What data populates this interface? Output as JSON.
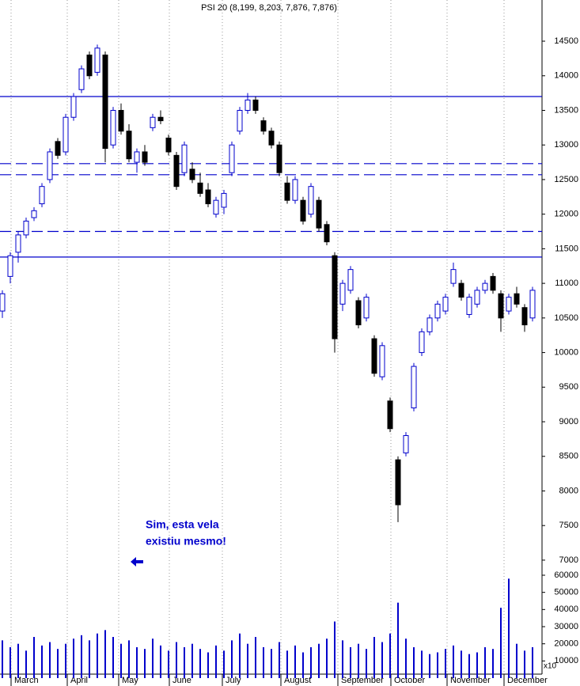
{
  "chart_data": {
    "type": "candlestick",
    "title": "PSI 20 (8,199, 8,203, 7,876, 7,876)",
    "annotation": [
      "Sim, esta vela",
      "existiu mesmo!"
    ],
    "volume_unit_label": "x10",
    "x": [
      0,
      1,
      2,
      3,
      4,
      5,
      6,
      7,
      8,
      9,
      10,
      11,
      12,
      13,
      14,
      15,
      16,
      17,
      18,
      19,
      20,
      21,
      22,
      23,
      24,
      25,
      26,
      27,
      28,
      29,
      30,
      31,
      32,
      33,
      34,
      35,
      36,
      37,
      38,
      39,
      40,
      41,
      42,
      43,
      44,
      45,
      46,
      47,
      48,
      49,
      50,
      51,
      52,
      53,
      54,
      55,
      56,
      57,
      58,
      59,
      60,
      61,
      62,
      63,
      64,
      65,
      66,
      67
    ],
    "open": [
      10600,
      11100,
      11450,
      11700,
      11950,
      12150,
      12500,
      13050,
      12900,
      13400,
      13800,
      14300,
      14050,
      14300,
      13000,
      13500,
      13200,
      12750,
      12900,
      13250,
      13400,
      13100,
      12850,
      12600,
      12650,
      12450,
      12350,
      12000,
      12100,
      12600,
      13200,
      13500,
      13650,
      13350,
      13200,
      13000,
      12450,
      12200,
      12200,
      12000,
      12200,
      11850,
      11400,
      10700,
      10900,
      10750,
      10500,
      10200,
      9650,
      9300,
      8450,
      8550,
      9200,
      10000,
      10300,
      10500,
      10600,
      11000,
      11000,
      10550,
      10700,
      10900,
      11100,
      10850,
      10600,
      10850,
      10650,
      10500
    ],
    "high": [
      10900,
      11450,
      11750,
      11950,
      12100,
      12450,
      12950,
      13100,
      13450,
      13750,
      14150,
      14350,
      14450,
      14350,
      13550,
      13600,
      13300,
      12950,
      13000,
      13450,
      13500,
      13150,
      12900,
      13050,
      12750,
      12600,
      12450,
      12250,
      12350,
      13050,
      13550,
      13750,
      13700,
      13400,
      13250,
      13050,
      12550,
      12550,
      12250,
      12450,
      12250,
      11900,
      11450,
      11050,
      11250,
      10800,
      10850,
      10250,
      10150,
      9350,
      8500,
      8850,
      9850,
      10350,
      10550,
      10750,
      10850,
      11300,
      11050,
      10850,
      10950,
      11050,
      11150,
      10900,
      10850,
      10950,
      10700,
      10950
    ],
    "low": [
      10500,
      11000,
      11300,
      11650,
      11900,
      12100,
      12450,
      12800,
      12850,
      13350,
      13750,
      13950,
      14000,
      12750,
      12950,
      13150,
      12750,
      12600,
      12700,
      13200,
      13300,
      12850,
      12350,
      12550,
      12450,
      12250,
      12100,
      11950,
      12000,
      12550,
      13150,
      13450,
      13450,
      13150,
      12950,
      12550,
      12150,
      12150,
      11850,
      11950,
      11750,
      11550,
      10000,
      10600,
      10850,
      10350,
      10450,
      9650,
      9600,
      8850,
      7550,
      8500,
      9150,
      9950,
      10250,
      10450,
      10550,
      10950,
      10750,
      10500,
      10650,
      10850,
      10850,
      10300,
      10550,
      10650,
      10300,
      10450
    ],
    "close": [
      10850,
      11400,
      11700,
      11900,
      12050,
      12400,
      12900,
      12850,
      13400,
      13700,
      14100,
      14000,
      14400,
      12950,
      13500,
      13200,
      12800,
      12900,
      12750,
      13400,
      13350,
      12900,
      12400,
      13000,
      12500,
      12300,
      12150,
      12200,
      12300,
      13000,
      13500,
      13650,
      13500,
      13200,
      13000,
      12600,
      12200,
      12500,
      11900,
      12400,
      11800,
      11600,
      10200,
      11000,
      11200,
      10400,
      10800,
      9700,
      10100,
      8900,
      7800,
      8800,
      9800,
      10300,
      10500,
      10700,
      10800,
      11200,
      10800,
      10800,
      10900,
      11000,
      10900,
      10500,
      10800,
      10700,
      10400,
      10900
    ],
    "volume": [
      22000,
      18000,
      20000,
      16000,
      24000,
      19000,
      21000,
      17000,
      20000,
      23000,
      25000,
      22000,
      26000,
      28000,
      24000,
      20000,
      22000,
      18000,
      17000,
      23000,
      19000,
      16000,
      21000,
      18000,
      20000,
      17000,
      15000,
      19000,
      16000,
      22000,
      26000,
      20000,
      24000,
      18000,
      17000,
      21000,
      16000,
      19000,
      15000,
      18000,
      20000,
      23000,
      33000,
      22000,
      18000,
      20000,
      17000,
      24000,
      21000,
      26000,
      44000,
      23000,
      18000,
      16000,
      14000,
      15000,
      17000,
      19000,
      16000,
      14000,
      15000,
      18000,
      17000,
      41000,
      58000,
      20000,
      16000,
      18000
    ],
    "up_color": "#0000cc",
    "down_color": "#000000",
    "volume_color": "#0000cc",
    "line_color": "#0000cc",
    "xlim": [
      -0.3,
      68.2
    ],
    "xticks": [
      {
        "value": 1.1,
        "label": "March"
      },
      {
        "value": 8.2,
        "label": "April"
      },
      {
        "value": 14.7,
        "label": "May"
      },
      {
        "value": 21.1,
        "label": "June"
      },
      {
        "value": 27.8,
        "label": "July"
      },
      {
        "value": 35.2,
        "label": "August"
      },
      {
        "value": 42.4,
        "label": "September"
      },
      {
        "value": 49.1,
        "label": "October"
      },
      {
        "value": 56.2,
        "label": "November"
      },
      {
        "value": 63.4,
        "label": "December"
      }
    ],
    "ylim": [
      6862,
      15095
    ],
    "yticks": [
      7000,
      7500,
      8000,
      8500,
      9000,
      9500,
      10000,
      10500,
      11000,
      11500,
      12000,
      12500,
      13000,
      13500,
      14000,
      14500
    ],
    "y2lim": [
      0,
      66000
    ],
    "y2ticks": [
      10000,
      20000,
      30000,
      40000,
      50000,
      60000
    ],
    "hlines": [
      {
        "value": 13700,
        "style": "solid"
      },
      {
        "value": 12730,
        "style": "dashed"
      },
      {
        "value": 12570,
        "style": "dashed"
      },
      {
        "value": 11750,
        "style": "dashed"
      },
      {
        "value": 11380,
        "style": "solid"
      }
    ],
    "grid": true
  }
}
